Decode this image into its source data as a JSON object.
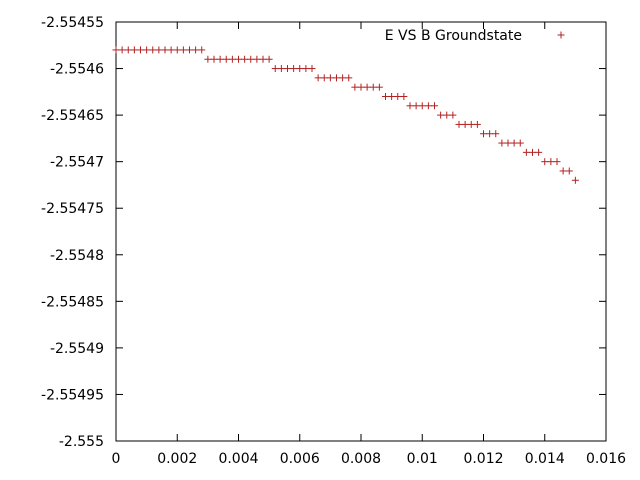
{
  "chart_data": {
    "type": "scatter",
    "title": "",
    "xlabel": "",
    "ylabel": "",
    "xlim": [
      0,
      0.016
    ],
    "ylim": [
      -2.555,
      -2.55455
    ],
    "xticks": [
      0,
      0.002,
      0.004,
      0.006,
      0.008,
      0.01,
      0.012,
      0.014,
      0.016
    ],
    "xtick_labels": [
      "0",
      "0.002",
      "0.004",
      "0.006",
      "0.008",
      "0.01",
      "0.012",
      "0.014",
      "0.016"
    ],
    "yticks": [
      -2.55455,
      -2.5546,
      -2.55465,
      -2.5547,
      -2.55475,
      -2.5548,
      -2.55485,
      -2.5549,
      -2.55495,
      -2.555
    ],
    "ytick_labels": [
      "-2.55455",
      "-2.5546",
      "-2.55465",
      "-2.5547",
      "-2.55475",
      "-2.5548",
      "-2.55485",
      "-2.5549",
      "-2.55495",
      "-2.555"
    ],
    "grid": false,
    "legend_position": "top-right",
    "marker": "plus",
    "color": "#b22222",
    "series": [
      {
        "name": "E VS B Groundstate",
        "x_start": 0,
        "x_step": 0.0002,
        "x_count": 76,
        "y_model": {
          "y0": -2.55458,
          "c": -0.6
        }
      }
    ]
  }
}
